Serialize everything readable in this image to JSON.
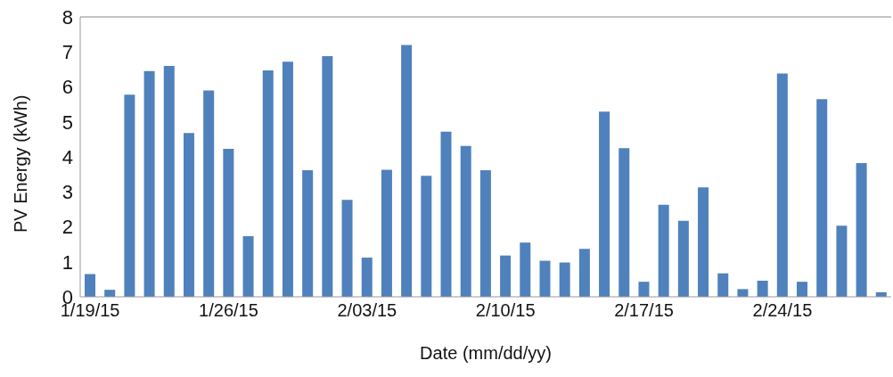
{
  "chart_data": {
    "type": "bar",
    "xlabel": "Date (mm/dd/yy)",
    "ylabel": "PV Energy (kWh)",
    "categories": [
      "1/19/15",
      null,
      null,
      null,
      null,
      null,
      null,
      "1/26/15",
      null,
      null,
      null,
      null,
      null,
      null,
      "2/03/15",
      null,
      null,
      null,
      null,
      null,
      null,
      "2/10/15",
      null,
      null,
      null,
      null,
      null,
      null,
      "2/17/15",
      null,
      null,
      null,
      null,
      null,
      null,
      "2/24/15",
      null,
      null,
      null,
      null,
      null
    ],
    "values": [
      0.65,
      0.2,
      5.78,
      6.45,
      6.6,
      4.68,
      5.9,
      4.23,
      1.73,
      6.47,
      6.72,
      3.62,
      6.88,
      2.77,
      1.12,
      3.63,
      7.2,
      3.46,
      4.72,
      4.31,
      3.62,
      1.18,
      1.55,
      1.03,
      0.98,
      1.37,
      5.29,
      4.25,
      0.43,
      2.63,
      2.17,
      3.13,
      0.67,
      0.22,
      0.46,
      6.38,
      0.43,
      5.65,
      2.03,
      3.82,
      0.13
    ],
    "color": "#4f81bd",
    "ylim": [
      0,
      8
    ],
    "yticks": [
      0,
      1,
      2,
      3,
      4,
      5,
      6,
      7,
      8
    ],
    "grid": false
  }
}
